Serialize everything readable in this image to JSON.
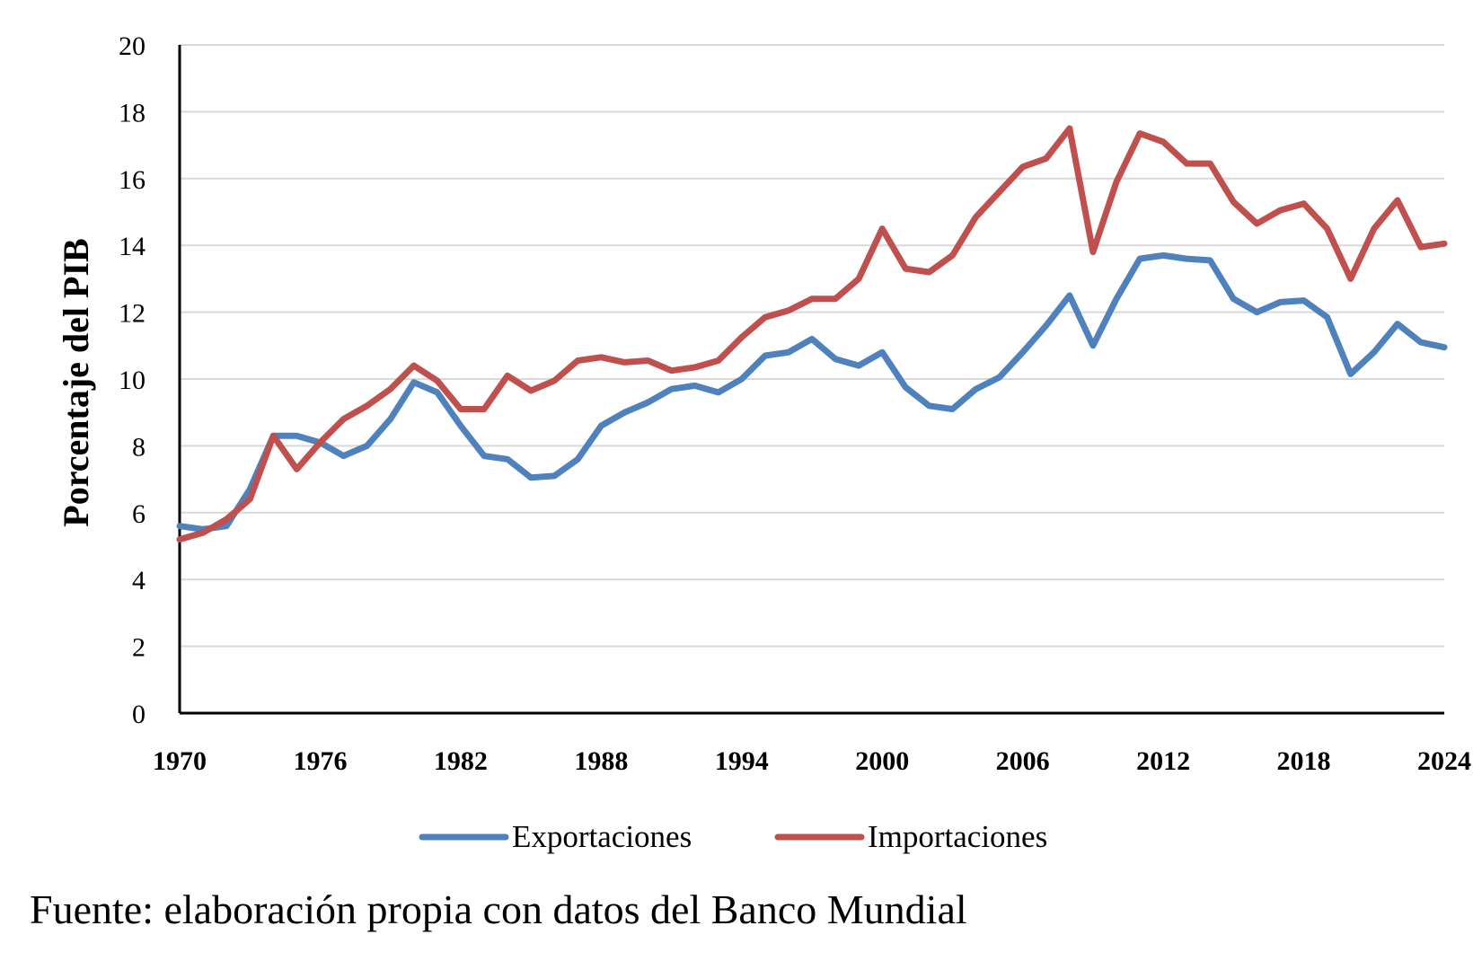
{
  "chart_data": {
    "type": "line",
    "xlabel": "",
    "ylabel": "Porcentaje del PIB",
    "xlim": [
      1970,
      2024
    ],
    "ylim": [
      0,
      20
    ],
    "x_ticks": [
      1970,
      1976,
      1982,
      1988,
      1994,
      2000,
      2006,
      2012,
      2018,
      2024
    ],
    "x_tick_labels": [
      "1970",
      "1976",
      "1982",
      "1988",
      "1994",
      "2000",
      "2006",
      "2012",
      "2018",
      "2024"
    ],
    "y_ticks": [
      0,
      2,
      4,
      6,
      8,
      10,
      12,
      14,
      16,
      18,
      20
    ],
    "y_tick_labels": [
      "0",
      "2",
      "4",
      "6",
      "8",
      "10",
      "12",
      "14",
      "16",
      "18",
      "20"
    ],
    "grid": "horizontal",
    "legend": "bottom",
    "x": [
      1970,
      1971,
      1972,
      1973,
      1974,
      1975,
      1976,
      1977,
      1978,
      1979,
      1980,
      1981,
      1982,
      1983,
      1984,
      1985,
      1986,
      1987,
      1988,
      1989,
      1990,
      1991,
      1992,
      1993,
      1994,
      1995,
      1996,
      1997,
      1998,
      1999,
      2000,
      2001,
      2002,
      2003,
      2004,
      2005,
      2006,
      2007,
      2008,
      2009,
      2010,
      2011,
      2012,
      2013,
      2014,
      2015,
      2016,
      2017,
      2018,
      2019,
      2020,
      2021,
      2022,
      2023,
      2024
    ],
    "series": [
      {
        "name": "Exportaciones",
        "color": "#4f81bd",
        "values": [
          5.6,
          5.5,
          5.6,
          6.7,
          8.3,
          8.3,
          8.1,
          7.7,
          8.0,
          8.8,
          9.9,
          9.6,
          8.6,
          7.7,
          7.6,
          7.05,
          7.1,
          7.6,
          8.6,
          9.0,
          9.3,
          9.7,
          9.8,
          9.6,
          10.0,
          10.7,
          10.8,
          11.2,
          10.6,
          10.4,
          10.8,
          9.75,
          9.2,
          9.1,
          9.7,
          10.05,
          10.8,
          11.6,
          12.5,
          11.0,
          12.4,
          13.6,
          13.7,
          13.6,
          13.55,
          12.4,
          12.0,
          12.3,
          12.35,
          11.85,
          10.15,
          10.8,
          11.65,
          11.1,
          10.95
        ]
      },
      {
        "name": "Importaciones",
        "color": "#c0504d",
        "values": [
          5.2,
          5.4,
          5.8,
          6.4,
          8.3,
          7.3,
          8.1,
          8.8,
          9.2,
          9.7,
          10.4,
          9.95,
          9.1,
          9.1,
          10.1,
          9.65,
          9.95,
          10.55,
          10.65,
          10.5,
          10.55,
          10.25,
          10.35,
          10.55,
          11.25,
          11.85,
          12.05,
          12.4,
          12.4,
          13.0,
          14.5,
          13.3,
          13.2,
          13.7,
          14.85,
          15.6,
          16.35,
          16.6,
          17.5,
          13.8,
          15.9,
          17.35,
          17.1,
          16.45,
          16.45,
          15.3,
          14.65,
          15.05,
          15.25,
          14.5,
          13.0,
          14.5,
          15.35,
          13.95,
          14.05
        ]
      }
    ]
  },
  "footer": {
    "source": "Fuente: elaboración propia con datos del Banco Mundial"
  }
}
